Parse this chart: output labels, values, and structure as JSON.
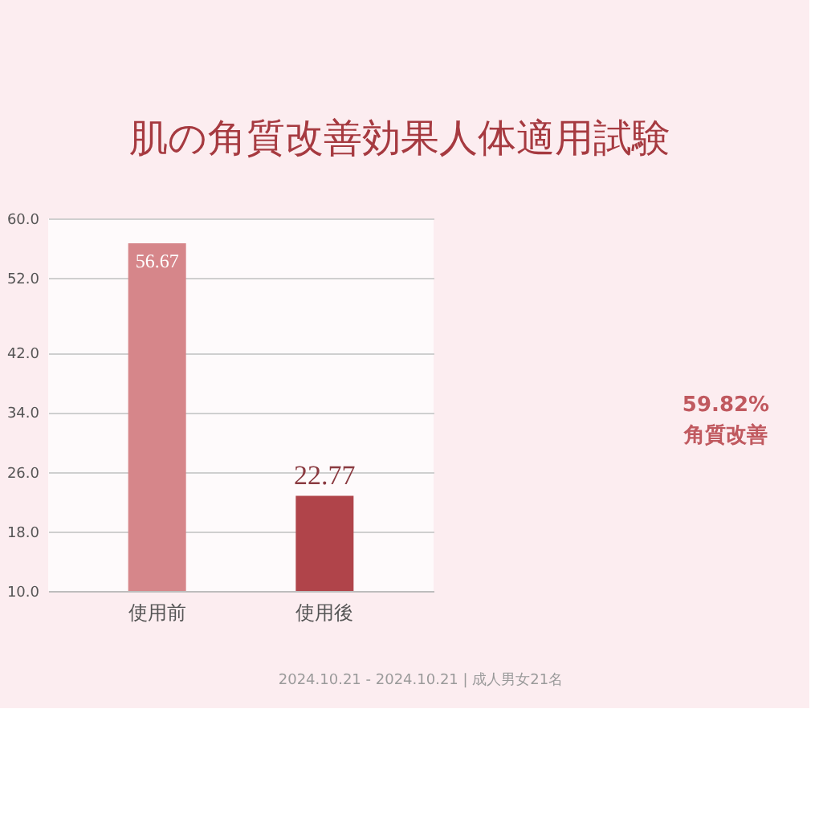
{
  "chart_data": {
    "type": "bar",
    "title": "肌の角質改善効果人体適用試験",
    "categories": [
      "使用前",
      "使用後"
    ],
    "values": [
      56.67,
      22.77
    ],
    "colors": [
      "#d6868a",
      "#b0444a"
    ],
    "ylim": [
      10,
      60
    ],
    "yticks": [
      {
        "value": 10,
        "label": "10.0"
      },
      {
        "value": 18,
        "label": "18.0"
      },
      {
        "value": 26,
        "label": "26.0"
      },
      {
        "value": 34,
        "label": "34.0"
      },
      {
        "value": 42,
        "label": "42.0"
      },
      {
        "value": 52,
        "label": "52.0"
      },
      {
        "value": 60,
        "label": "60.0"
      }
    ],
    "grid": "y",
    "data_labels": true,
    "annotations": [
      "59.82%",
      "角質改善",
      "2024.10.21 - 2024.10.21 | 成人男女21名"
    ]
  }
}
